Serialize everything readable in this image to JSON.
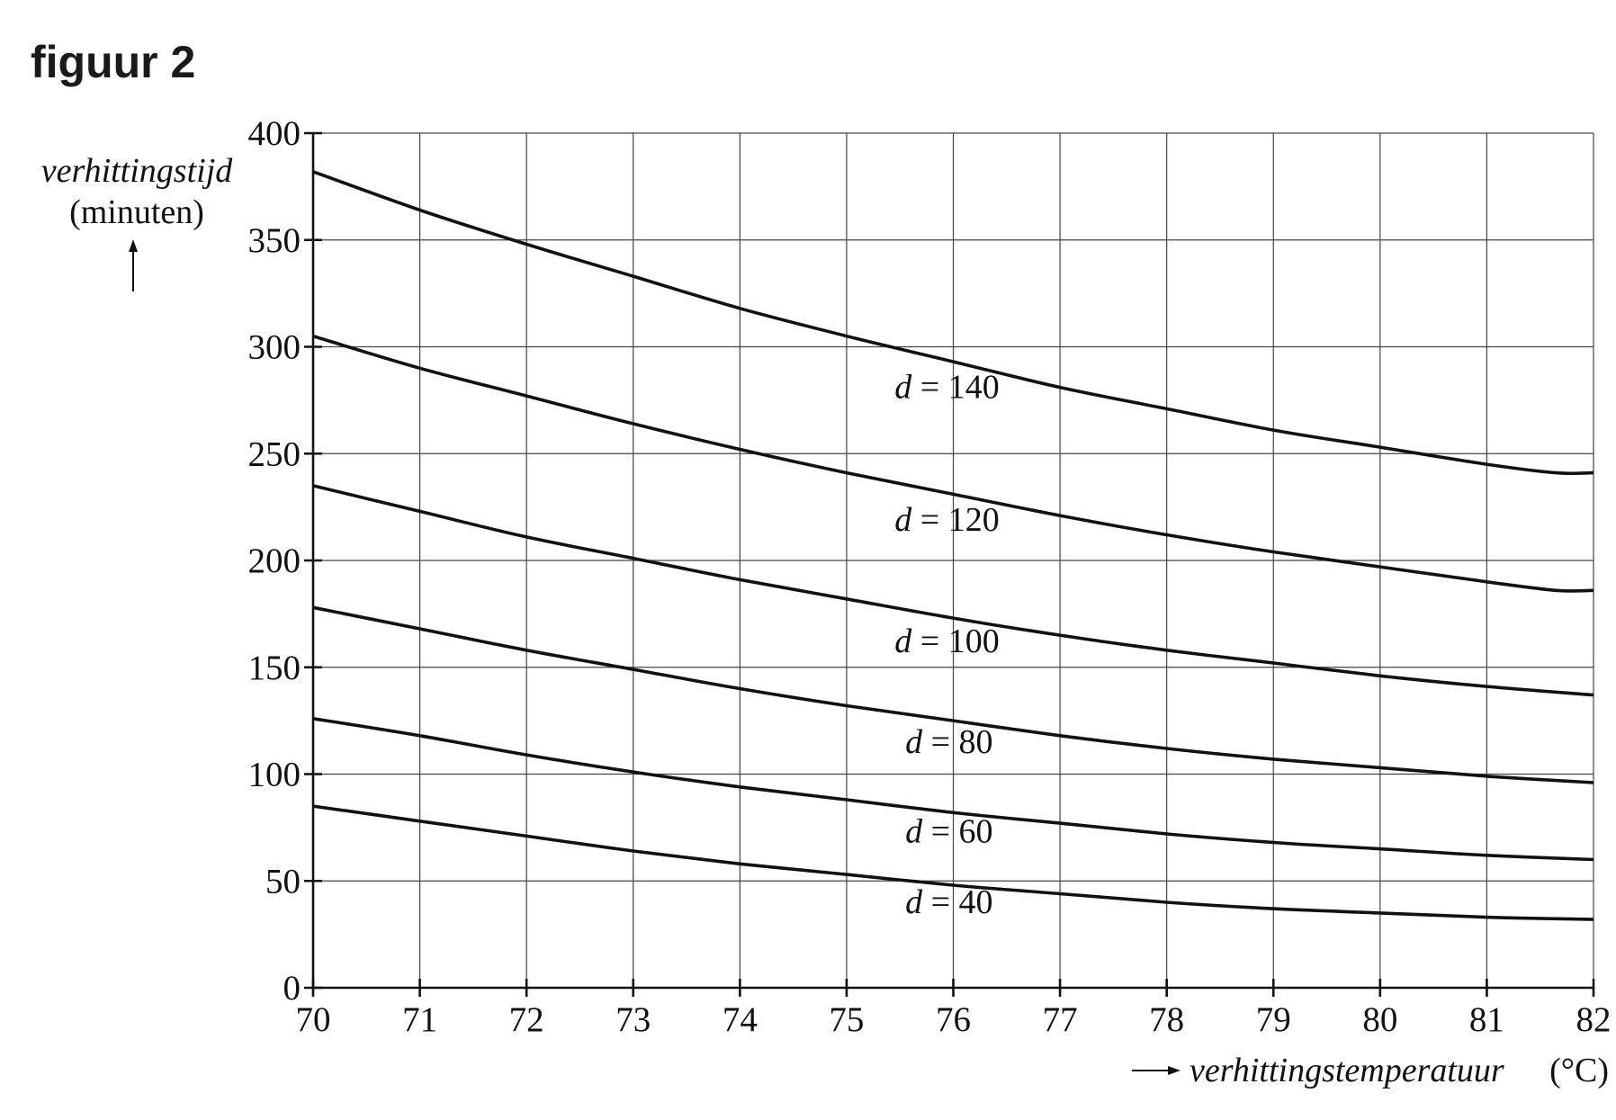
{
  "figure": {
    "title": "figuur 2"
  },
  "chart_data": {
    "type": "line",
    "xlabel": "verhittingstemperatuur",
    "xunit": "(°C)",
    "ylabel": "verhittingstijd",
    "yunit": "(minuten)",
    "xlim": [
      70,
      82
    ],
    "ylim": [
      0,
      400
    ],
    "xticks": [
      70,
      71,
      72,
      73,
      74,
      75,
      76,
      77,
      78,
      79,
      80,
      81,
      82
    ],
    "yticks": [
      0,
      50,
      100,
      150,
      200,
      250,
      300,
      350,
      400
    ],
    "grid": true,
    "series": [
      {
        "name": "d = 140",
        "x": [
          70,
          71,
          72,
          73,
          74,
          75,
          76,
          77,
          78,
          79,
          80,
          81,
          81.65,
          82
        ],
        "y": [
          382,
          364,
          348,
          333,
          318,
          305,
          293,
          281,
          271,
          261,
          253,
          245,
          241,
          241
        ]
      },
      {
        "name": "d = 120",
        "x": [
          70,
          71,
          72,
          73,
          74,
          75,
          76,
          77,
          78,
          79,
          80,
          81,
          81.65,
          82
        ],
        "y": [
          305,
          290,
          277,
          264,
          252,
          241,
          231,
          221,
          212,
          204,
          197,
          190,
          186,
          186
        ]
      },
      {
        "name": "d = 100",
        "x": [
          70,
          71,
          72,
          73,
          74,
          75,
          76,
          77,
          78,
          79,
          80,
          81,
          82
        ],
        "y": [
          235,
          223,
          211,
          201,
          191,
          182,
          173,
          165,
          158,
          152,
          146,
          141,
          137
        ]
      },
      {
        "name": "d = 80",
        "x": [
          70,
          71,
          72,
          73,
          74,
          75,
          76,
          77,
          78,
          79,
          80,
          81,
          82
        ],
        "y": [
          178,
          168,
          158,
          149,
          140,
          132,
          125,
          118,
          112,
          107,
          103,
          99,
          96
        ]
      },
      {
        "name": "d = 60",
        "x": [
          70,
          71,
          72,
          73,
          74,
          75,
          76,
          77,
          78,
          79,
          80,
          81,
          82
        ],
        "y": [
          126,
          118,
          109,
          101,
          94,
          88,
          82,
          77,
          72,
          68,
          65,
          62,
          60
        ]
      },
      {
        "name": "d = 40",
        "x": [
          70,
          71,
          72,
          73,
          74,
          75,
          76,
          77,
          78,
          79,
          80,
          81,
          82
        ],
        "y": [
          85,
          78,
          71,
          64,
          58,
          53,
          48,
          44,
          40,
          37,
          35,
          33,
          32
        ]
      }
    ],
    "curve_labels": [
      {
        "var": "d",
        "eq": "=",
        "value": "140",
        "x": 75.45,
        "y": 276
      },
      {
        "var": "d",
        "eq": "=",
        "value": "120",
        "x": 75.45,
        "y": 214
      },
      {
        "var": "d",
        "eq": "=",
        "value": "100",
        "x": 75.45,
        "y": 157
      },
      {
        "var": "d",
        "eq": "=",
        "value": "80",
        "x": 75.55,
        "y": 110
      },
      {
        "var": "d",
        "eq": "=",
        "value": "60",
        "x": 75.55,
        "y": 68
      },
      {
        "var": "d",
        "eq": "=",
        "value": "40",
        "x": 75.55,
        "y": 35
      }
    ]
  }
}
